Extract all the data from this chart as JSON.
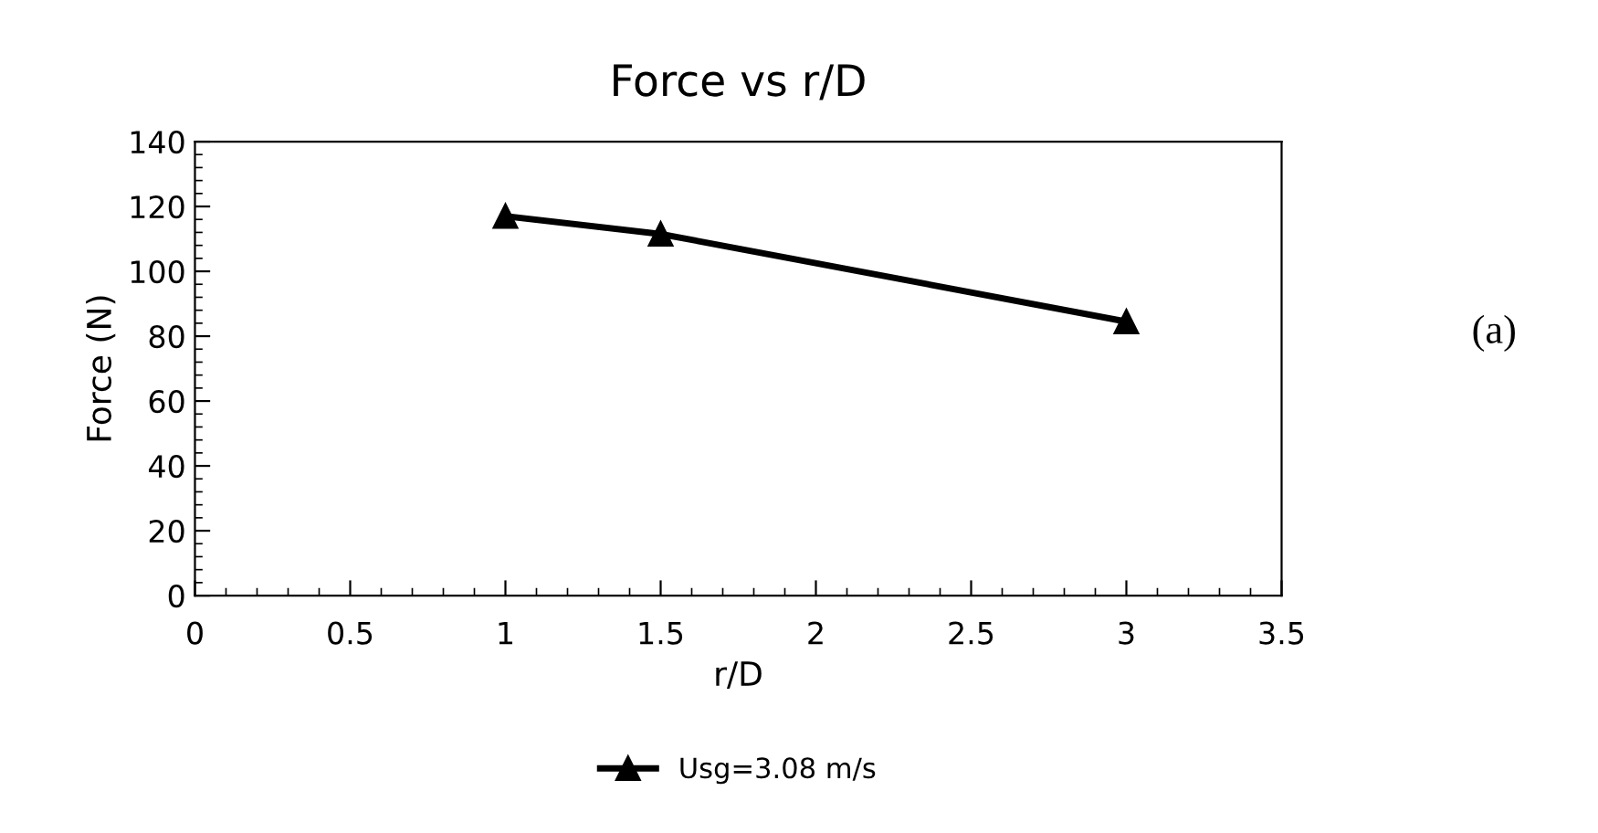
{
  "chart_data": {
    "type": "line",
    "title": "Force vs r/D",
    "xlabel": "r/D",
    "ylabel": "Force (N)",
    "x": [
      1,
      1.5,
      3
    ],
    "series": [
      {
        "name": "Usg=3.08 m/s",
        "color": "#000000",
        "values": [
          117,
          111.5,
          84.5
        ]
      }
    ],
    "xlim": [
      0,
      3.5
    ],
    "xticks": [
      0,
      0.5,
      1,
      1.5,
      2,
      2.5,
      3,
      3.5
    ],
    "ylim": [
      0,
      140
    ],
    "yticks": [
      0,
      20,
      40,
      60,
      80,
      100,
      120,
      140
    ],
    "marker": "triangle",
    "line_style": "solid",
    "grid": false,
    "legend": "bottom",
    "annotations": [
      "(a)"
    ]
  }
}
